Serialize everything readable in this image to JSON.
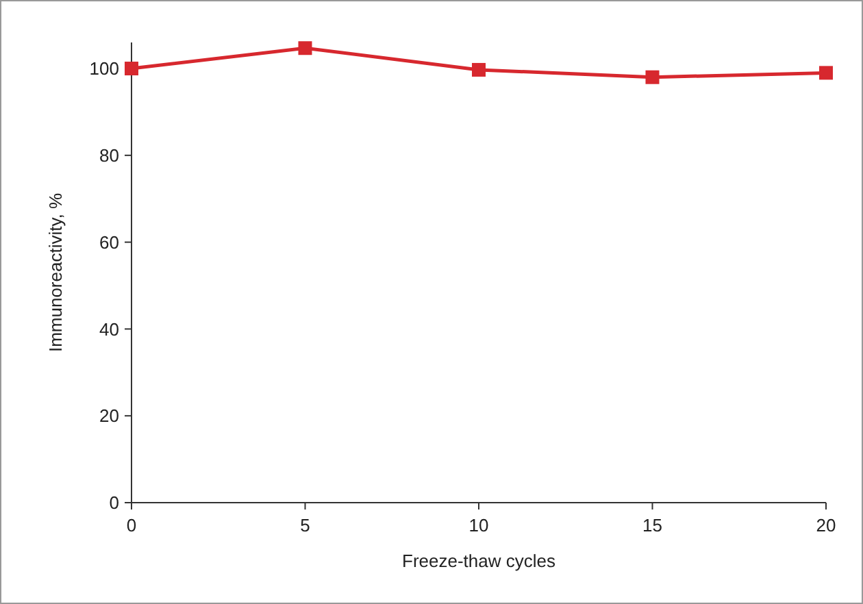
{
  "chart_data": {
    "type": "line",
    "xlabel": "Freeze-thaw cycles",
    "ylabel": "Immunoreactivity, %",
    "x": [
      0,
      5,
      10,
      15,
      20
    ],
    "series": [
      {
        "color": "#d7282e",
        "values": [
          100,
          104.7,
          99.7,
          98,
          99
        ]
      }
    ],
    "xlim": [
      0,
      20
    ],
    "xticks": [
      0,
      5,
      10,
      15,
      20
    ],
    "ylim": [
      0,
      106
    ],
    "yticks": [
      0,
      20,
      40,
      60,
      80,
      100
    ],
    "marker": "square",
    "line_style": "solid"
  }
}
